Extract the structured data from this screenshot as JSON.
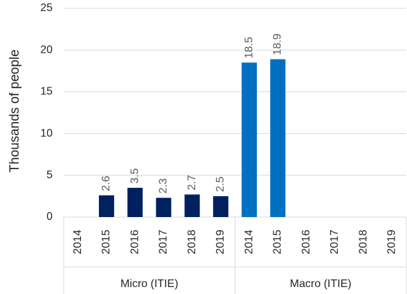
{
  "chart_data": {
    "type": "bar",
    "y_label": "Thousands of people",
    "ylim": [
      0,
      25
    ],
    "yticks": [
      0,
      5,
      10,
      15,
      20,
      25
    ],
    "grid": true,
    "groups": [
      {
        "label": "Micro (ITIE)",
        "color": "#002060",
        "categories": [
          "2014",
          "2015",
          "2016",
          "2017",
          "2018",
          "2019"
        ],
        "values": [
          null,
          2.6,
          3.5,
          2.3,
          2.7,
          2.5
        ]
      },
      {
        "label": "Macro (ITIE)",
        "color": "#0070c0",
        "categories": [
          "2014",
          "2015",
          "2016",
          "2017",
          "2018",
          "2019"
        ],
        "values": [
          18.5,
          18.9,
          null,
          null,
          null,
          null
        ]
      }
    ]
  }
}
